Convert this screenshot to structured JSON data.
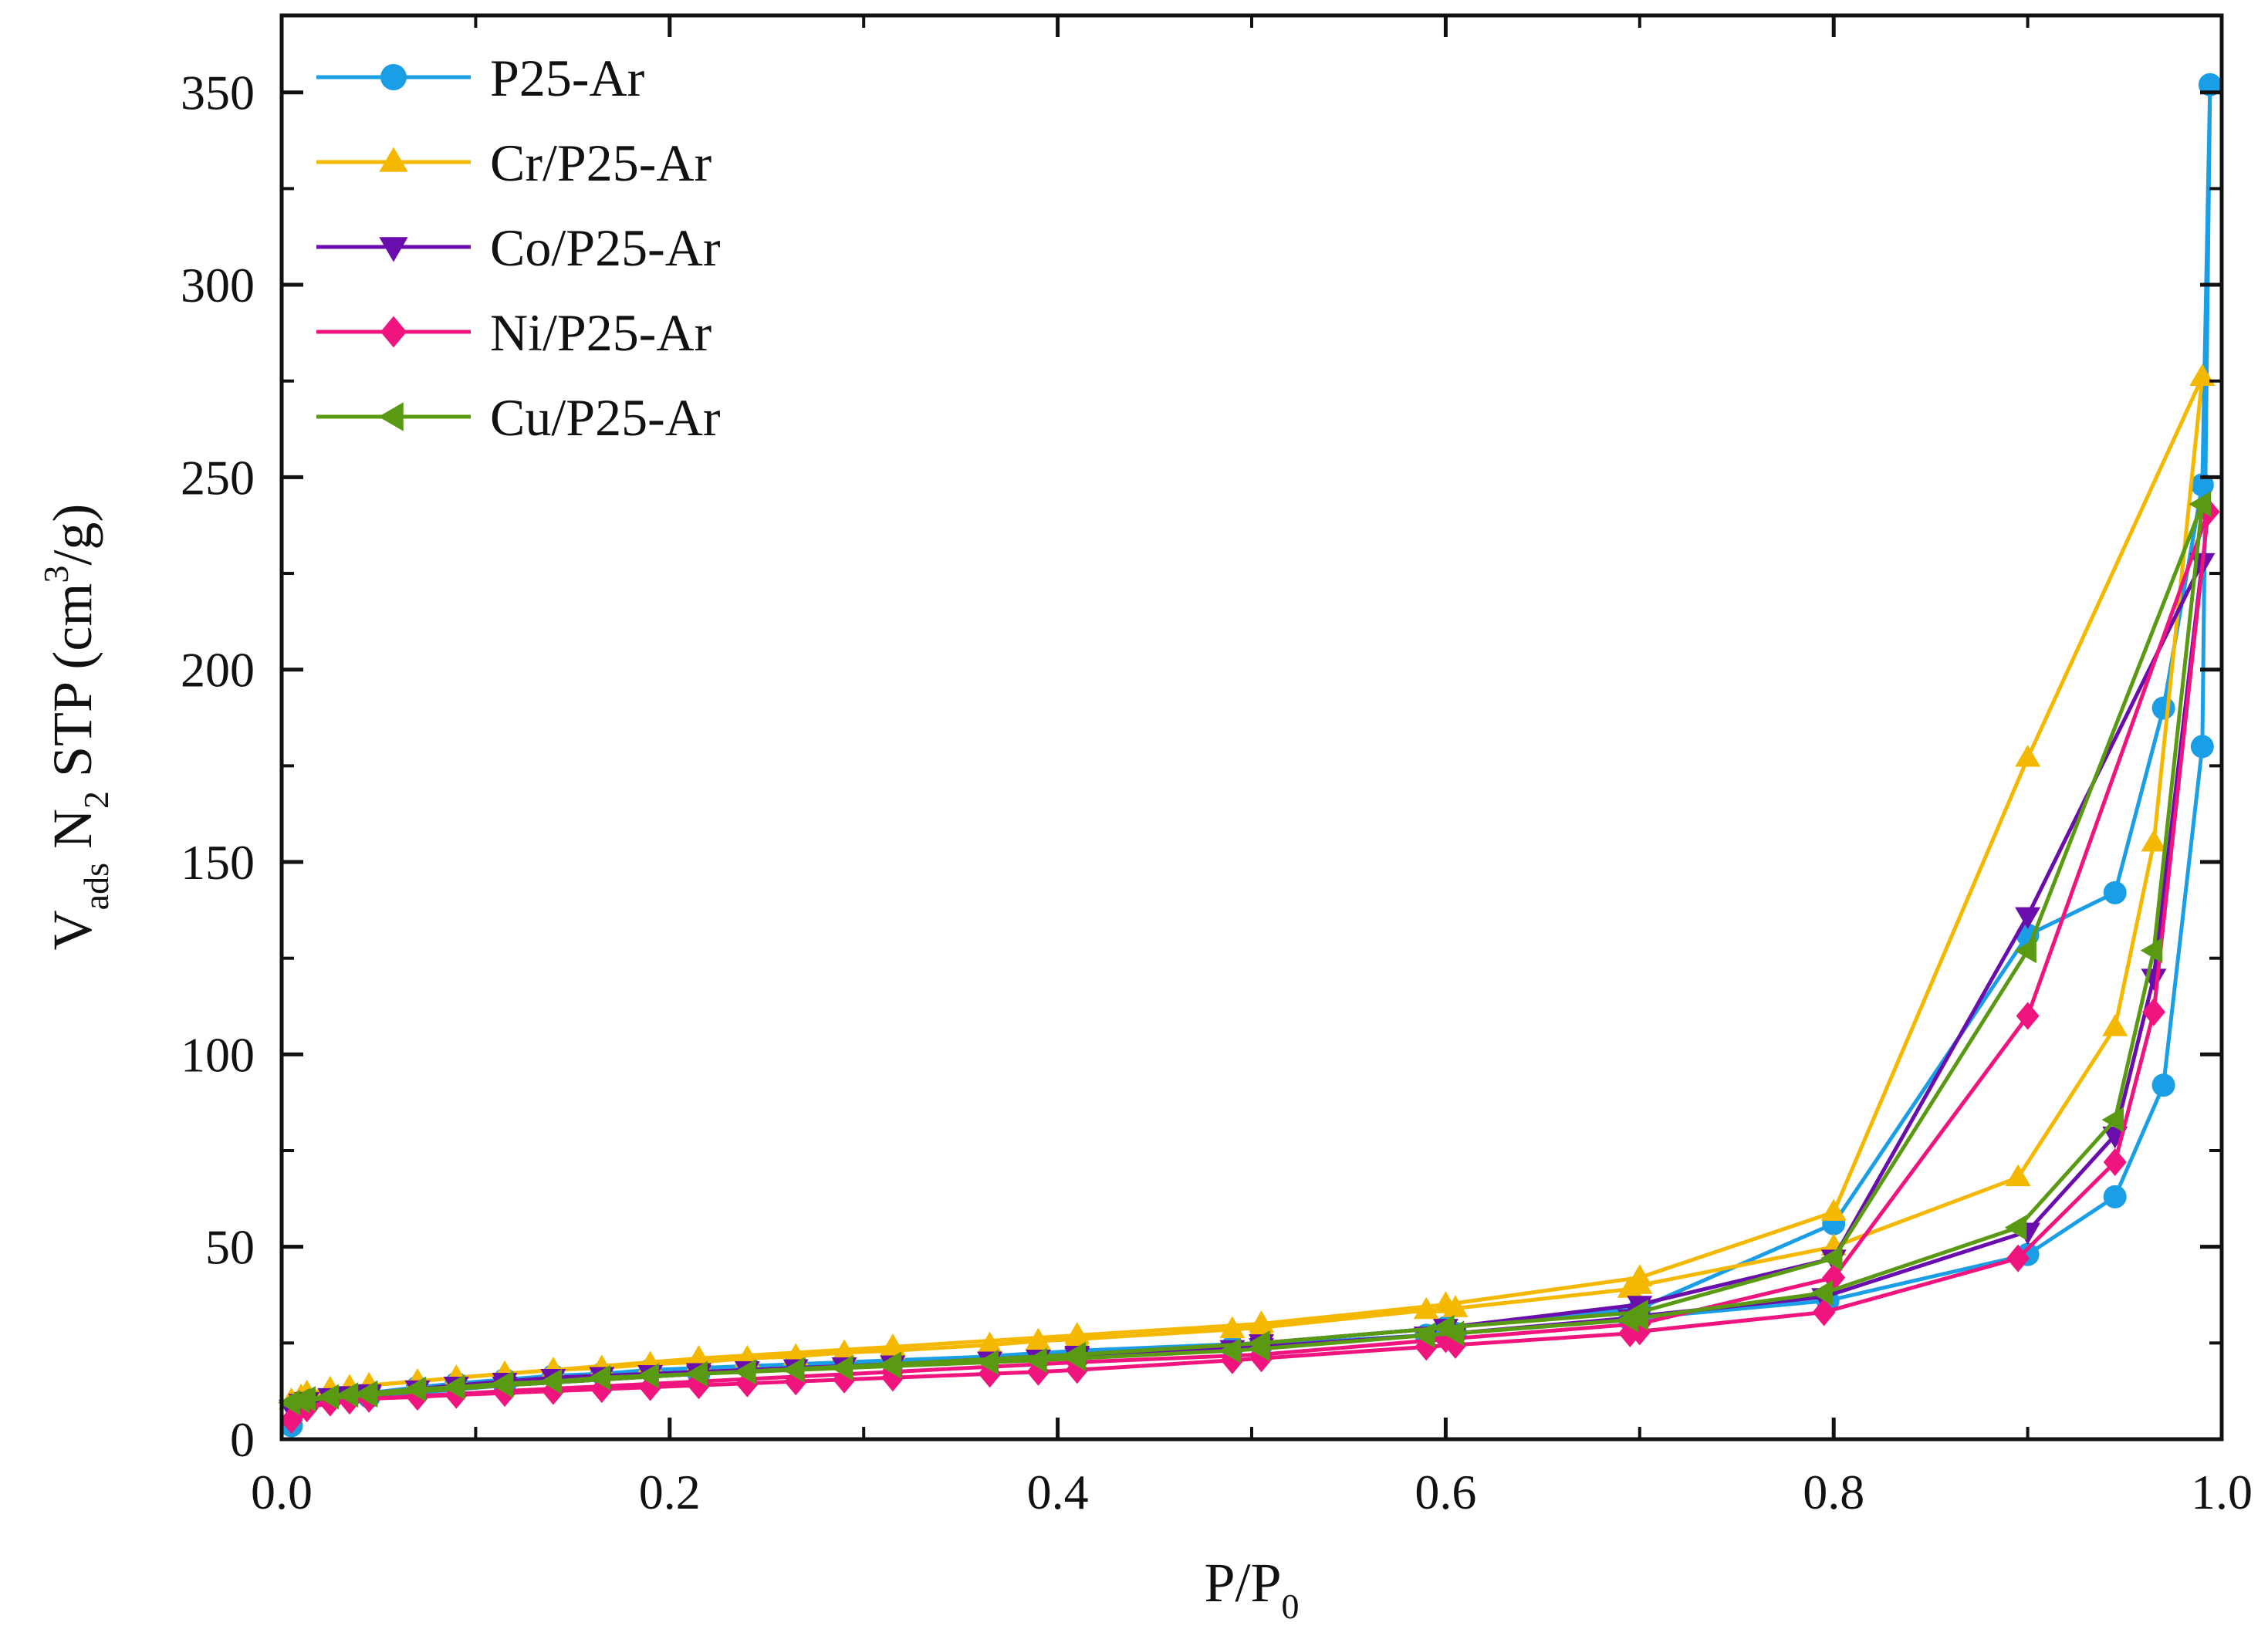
{
  "chart_data": {
    "type": "line",
    "title": "",
    "xlabel": "P/P0",
    "xlabel_parts": {
      "main": "P/P",
      "sub": "0"
    },
    "ylabel": "V_ads N_2 STP (cm^3/g)",
    "ylabel_parts": {
      "v": "V",
      "v_sub": "ads",
      "n": " N",
      "n_sub": "2",
      "stp": " STP (cm",
      "sup": "3",
      "tail": "/g)"
    },
    "xlim": [
      0,
      1.0
    ],
    "ylim": [
      0,
      370
    ],
    "xticks": [
      0.0,
      0.2,
      0.4,
      0.6,
      0.8,
      1.0
    ],
    "xtick_labels": [
      "0.0",
      "0.2",
      "0.4",
      "0.6",
      "0.8",
      "1.0"
    ],
    "yticks": [
      0,
      50,
      100,
      150,
      200,
      250,
      300,
      350
    ],
    "ytick_labels": [
      "0",
      "50",
      "100",
      "150",
      "200",
      "250",
      "300",
      "350"
    ],
    "grid": false,
    "legend_position": "top-left",
    "series": [
      {
        "name": "P25-Ar",
        "color": "#1a9fe6",
        "marker": "circle",
        "x": [
          0.005,
          0.013,
          0.025,
          0.035,
          0.045,
          0.07,
          0.09,
          0.115,
          0.14,
          0.165,
          0.19,
          0.215,
          0.24,
          0.265,
          0.29,
          0.315,
          0.365,
          0.39,
          0.41,
          0.49,
          0.505,
          0.59,
          0.605,
          0.695,
          0.7,
          0.797,
          0.9,
          0.945,
          0.97,
          0.99,
          0.994,
          0.99,
          0.97,
          0.945,
          0.9,
          0.8,
          0.7,
          0.6,
          0.505,
          0.41,
          0.315,
          0.215,
          0.115,
          0.045,
          0.01
        ],
        "y": [
          3.5,
          9,
          10.5,
          11.5,
          12,
          13.5,
          14.5,
          15.5,
          16.5,
          17,
          18,
          18.5,
          19,
          19.5,
          20,
          20.5,
          21.5,
          22,
          22.5,
          24,
          24.5,
          27,
          27.5,
          31,
          31.5,
          36,
          48,
          63,
          92,
          180,
          352,
          248,
          190,
          142,
          131,
          56,
          34,
          29,
          25,
          23,
          20,
          17,
          14,
          11,
          9
        ]
      },
      {
        "name": "Cr/P25-Ar",
        "color": "#f5b800",
        "marker": "triangle-up",
        "x": [
          0.005,
          0.013,
          0.025,
          0.035,
          0.045,
          0.07,
          0.09,
          0.115,
          0.14,
          0.165,
          0.19,
          0.215,
          0.24,
          0.265,
          0.29,
          0.315,
          0.365,
          0.39,
          0.41,
          0.49,
          0.505,
          0.59,
          0.605,
          0.695,
          0.7,
          0.8,
          0.895,
          0.945,
          0.965,
          0.99,
          0.99,
          0.9,
          0.8,
          0.7,
          0.6,
          0.505,
          0.41,
          0.315,
          0.215,
          0.115,
          0.045,
          0.01
        ],
        "y": [
          10,
          12,
          13,
          13.5,
          14,
          15,
          16,
          17,
          18,
          18.5,
          19.5,
          20,
          21,
          21.5,
          22.5,
          23,
          24.5,
          25.5,
          26,
          28.5,
          29,
          33.5,
          34,
          39,
          40,
          50,
          68,
          107,
          155,
          276,
          276,
          177,
          59,
          42,
          35,
          30,
          27,
          24,
          21,
          17,
          14,
          11
        ]
      },
      {
        "name": "Co/P25-Ar",
        "color": "#6a0dad",
        "marker": "triangle-down",
        "x": [
          0.005,
          0.013,
          0.025,
          0.035,
          0.045,
          0.07,
          0.09,
          0.115,
          0.14,
          0.165,
          0.19,
          0.215,
          0.24,
          0.265,
          0.29,
          0.315,
          0.365,
          0.39,
          0.41,
          0.49,
          0.505,
          0.59,
          0.605,
          0.695,
          0.7,
          0.795,
          0.9,
          0.945,
          0.965,
          0.99,
          0.99,
          0.9,
          0.8,
          0.7,
          0.6,
          0.505,
          0.41,
          0.315,
          0.215,
          0.115,
          0.045,
          0.01
        ],
        "y": [
          8,
          10,
          11,
          11.5,
          12,
          13,
          14,
          15,
          16,
          16.5,
          17,
          17.5,
          18,
          18.5,
          19,
          19.5,
          20.5,
          21,
          21.5,
          23.5,
          24,
          27,
          27.5,
          31.5,
          32,
          37,
          54,
          79,
          120,
          228,
          228,
          136,
          47,
          35,
          29,
          25,
          22,
          19.5,
          17,
          14,
          11.5,
          9.5
        ]
      },
      {
        "name": "Ni/P25-Ar",
        "color": "#f0157e",
        "marker": "diamond",
        "x": [
          0.005,
          0.013,
          0.025,
          0.035,
          0.045,
          0.07,
          0.09,
          0.115,
          0.14,
          0.165,
          0.19,
          0.215,
          0.24,
          0.265,
          0.29,
          0.315,
          0.365,
          0.39,
          0.41,
          0.49,
          0.505,
          0.59,
          0.605,
          0.695,
          0.7,
          0.795,
          0.895,
          0.945,
          0.965,
          0.993,
          0.993,
          0.9,
          0.8,
          0.7,
          0.6,
          0.505,
          0.41,
          0.315,
          0.215,
          0.115,
          0.045,
          0.01
        ],
        "y": [
          5,
          8,
          9.5,
          10,
          10.5,
          11,
          11.5,
          12,
          12.5,
          13,
          13.5,
          14,
          14.5,
          15,
          15.5,
          16,
          17,
          17.5,
          18,
          20.5,
          21,
          24,
          24.5,
          27.5,
          28,
          33,
          47,
          72,
          111,
          241,
          241,
          110,
          42,
          30,
          26,
          22,
          20,
          17.5,
          15,
          12.5,
          10.5,
          8.5
        ]
      },
      {
        "name": "Cu/P25-Ar",
        "color": "#5a9a12",
        "marker": "triangle-left",
        "x": [
          0.005,
          0.013,
          0.025,
          0.035,
          0.045,
          0.07,
          0.09,
          0.115,
          0.14,
          0.165,
          0.19,
          0.215,
          0.24,
          0.265,
          0.29,
          0.315,
          0.365,
          0.39,
          0.41,
          0.49,
          0.505,
          0.59,
          0.605,
          0.695,
          0.7,
          0.795,
          0.895,
          0.945,
          0.965,
          0.99,
          0.99,
          0.9,
          0.8,
          0.7,
          0.6,
          0.505,
          0.41,
          0.315,
          0.215,
          0.115,
          0.045,
          0.01
        ],
        "y": [
          9.5,
          10.5,
          11,
          11.5,
          12,
          13,
          13.5,
          14.5,
          15,
          16,
          16.5,
          17,
          17.5,
          18,
          18.5,
          19,
          20,
          20.5,
          21,
          23,
          23.5,
          27,
          27.5,
          31,
          31.5,
          38,
          55,
          83,
          127,
          243,
          243,
          127,
          47,
          33,
          29,
          25,
          22,
          19.5,
          17,
          14,
          11.5,
          10
        ]
      }
    ]
  }
}
